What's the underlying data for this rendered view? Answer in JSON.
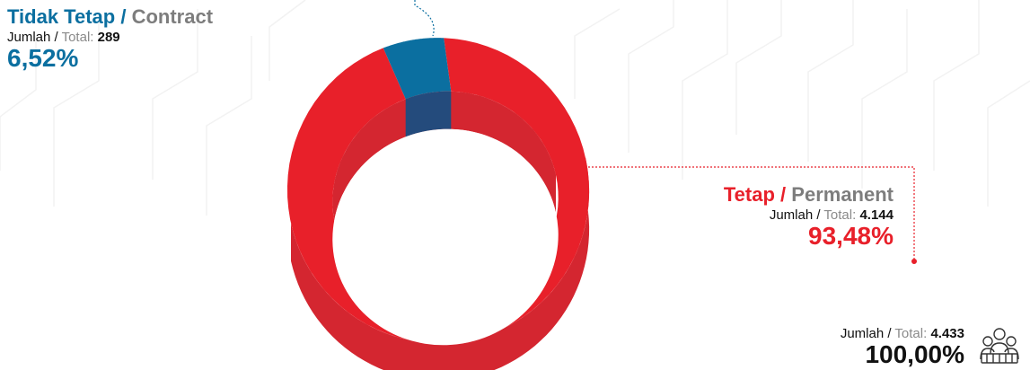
{
  "chart_data": {
    "type": "pie",
    "categories": [
      "Tidak Tetap / Contract",
      "Tetap / Permanent"
    ],
    "values": [
      289,
      4144
    ],
    "percentages": [
      "6,52%",
      "93,48%"
    ],
    "total": 4433,
    "colors": {
      "contract": "#0b6fa0",
      "contract_dark": "#244b7c",
      "permanent": "#e8202a",
      "permanent_dark": "#d42630"
    }
  },
  "labels": {
    "contract": {
      "title_id": "Tidak Tetap",
      "separator": "/",
      "title_en": "Contract",
      "count_label_id": "Jumlah",
      "count_label_en": "Total:",
      "count_value": "289",
      "percent": "6,52%"
    },
    "permanent": {
      "title_id": "Tetap",
      "separator": "/",
      "title_en": "Permanent",
      "count_label_id": "Jumlah",
      "count_label_en": "Total:",
      "count_value": "4.144",
      "percent": "93,48%"
    },
    "total": {
      "count_label_id": "Jumlah",
      "count_label_en": "Total:",
      "count_value": "4.433",
      "percent": "100,00%"
    }
  },
  "icons": {
    "people": "people-group-icon"
  }
}
